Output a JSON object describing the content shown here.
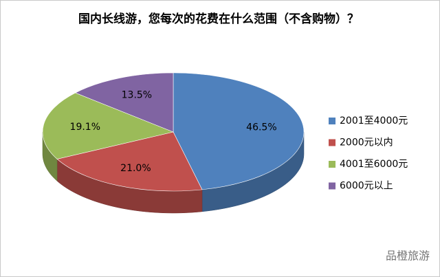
{
  "chart_data": {
    "type": "pie3d",
    "title": "国内长线游，您每次的花费在什么范围（不含购物）？",
    "categories": [
      "2001至4000元",
      "2000元以内",
      "4001至6000元",
      "6000元以上"
    ],
    "values": [
      46.5,
      21.0,
      19.1,
      13.5
    ],
    "value_labels": [
      "46.5%",
      "21.0%",
      "19.1%",
      "13.5%"
    ],
    "colors": [
      "#4f81bd",
      "#c0504d",
      "#9bbb59",
      "#8064a2"
    ],
    "legend": "right"
  },
  "watermark": "品橙旅游"
}
